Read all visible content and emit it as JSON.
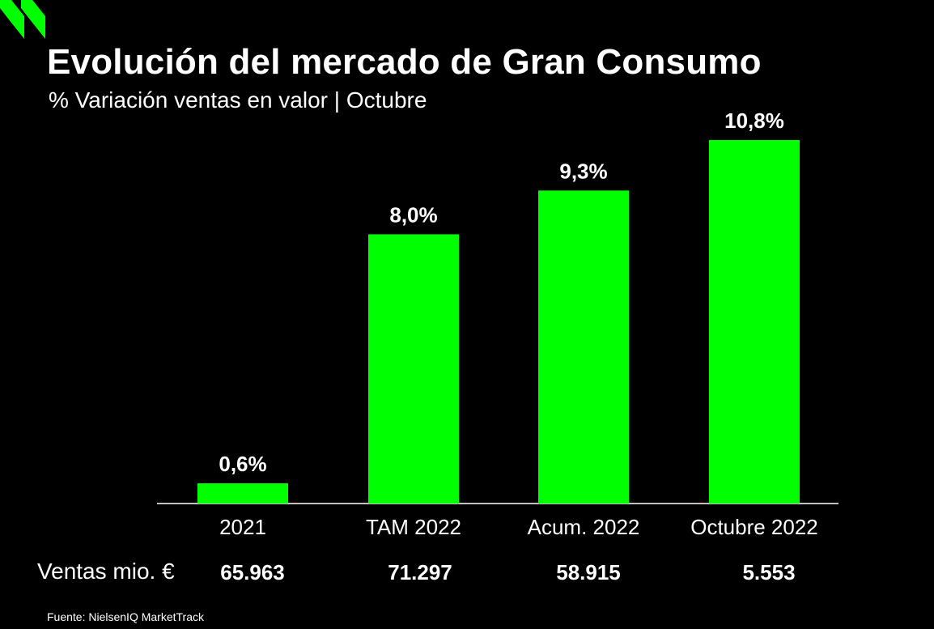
{
  "title": "Evolución del mercado de Gran Consumo",
  "subtitle": "% Variación ventas en valor | Octubre",
  "colors": {
    "background": "#000000",
    "bar": "#00ff00",
    "text": "#ffffff",
    "axis": "#ffffff"
  },
  "icons": {
    "logo": "double-chevron-logo-icon"
  },
  "chart_data": {
    "type": "bar",
    "categories": [
      "2021",
      "TAM 2022",
      "Acum. 2022",
      "Octubre 2022"
    ],
    "values": [
      0.6,
      8.0,
      9.3,
      10.8
    ],
    "data_labels": [
      "0,6%",
      "8,0%",
      "9,3%",
      "10,8%"
    ],
    "title": "Evolución del mercado de Gran Consumo",
    "subtitle": "% Variación ventas en valor | Octubre",
    "xlabel": "",
    "ylabel": "",
    "ylim": [
      0,
      10.8
    ],
    "grid": false,
    "legend": "none"
  },
  "sales": {
    "label": "Ventas mio. €",
    "values": [
      "65.963",
      "71.297",
      "58.915",
      "5.553"
    ]
  },
  "source": "Fuente: NielsenIQ MarketTrack"
}
